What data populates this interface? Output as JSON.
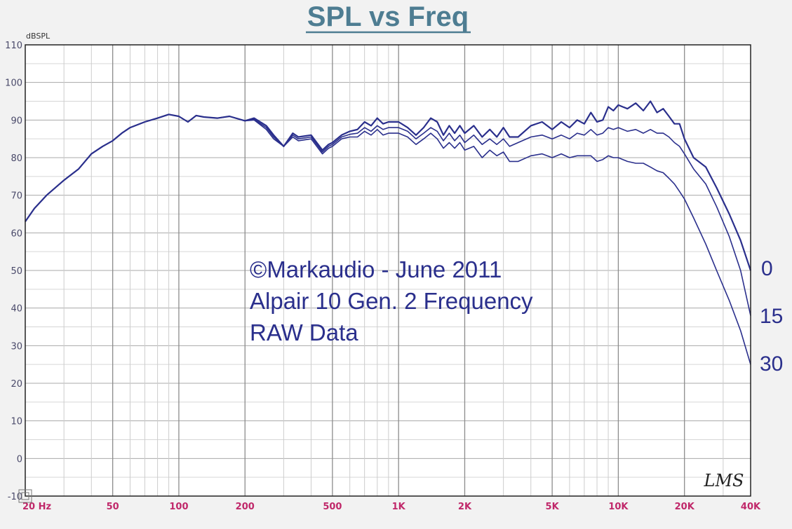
{
  "chart_data": {
    "type": "line",
    "title": "SPL vs Freq",
    "ylabel": "dBSPL",
    "xlabel": "",
    "x_scale": "log",
    "xlim": [
      20,
      40000
    ],
    "ylim": [
      -10,
      110
    ],
    "grid": true,
    "y_ticks": [
      "-10",
      "0",
      "10",
      "20",
      "30",
      "40",
      "50",
      "60",
      "70",
      "80",
      "90",
      "100",
      "110"
    ],
    "x_ticks": [
      {
        "label": "20 Hz",
        "value": 20
      },
      {
        "label": "50",
        "value": 50
      },
      {
        "label": "100",
        "value": 100
      },
      {
        "label": "200",
        "value": 200
      },
      {
        "label": "500",
        "value": 500
      },
      {
        "label": "1K",
        "value": 1000
      },
      {
        "label": "2K",
        "value": 2000
      },
      {
        "label": "5K",
        "value": 5000
      },
      {
        "label": "10K",
        "value": 10000
      },
      {
        "label": "20K",
        "value": 20000
      },
      {
        "label": "40K",
        "value": 40000
      }
    ],
    "annotations": [
      "©Markaudio - June 2011",
      "Alpair 10 Gen. 2 Frequency",
      "RAW Data"
    ],
    "signature": "LMS",
    "line_color": "#2a2f8c",
    "title_color": "#4e7d92",
    "x_tick_color": "#c0286a",
    "series": [
      {
        "name": "0",
        "x": [
          20,
          22,
          25,
          30,
          35,
          40,
          45,
          50,
          55,
          60,
          70,
          80,
          90,
          100,
          110,
          120,
          130,
          150,
          170,
          200,
          220,
          250,
          270,
          300,
          330,
          350,
          400,
          450,
          480,
          500,
          550,
          600,
          650,
          700,
          750,
          800,
          850,
          900,
          1000,
          1100,
          1200,
          1300,
          1400,
          1500,
          1600,
          1700,
          1800,
          1900,
          2000,
          2200,
          2400,
          2600,
          2800,
          3000,
          3200,
          3500,
          4000,
          4500,
          5000,
          5500,
          6000,
          6500,
          7000,
          7500,
          8000,
          8500,
          9000,
          9500,
          10000,
          11000,
          12000,
          13000,
          14000,
          15000,
          16000,
          17000,
          18000,
          19000,
          20000,
          22000,
          25000,
          28000,
          32000,
          36000,
          40000
        ],
        "y": [
          63,
          66.5,
          70,
          74,
          77,
          81,
          83,
          84.5,
          86.5,
          88,
          89.5,
          90.5,
          91.5,
          91,
          89.5,
          91.2,
          90.8,
          90.5,
          91,
          89.8,
          90.5,
          88.5,
          86,
          83,
          86.5,
          85.5,
          86,
          82,
          83.5,
          84,
          86,
          87,
          87.5,
          89.5,
          88.5,
          90.5,
          89,
          89.5,
          89.5,
          88,
          86,
          88,
          90.5,
          89.5,
          86,
          88.5,
          86.5,
          88.5,
          86.5,
          88.5,
          85.5,
          87.5,
          85.5,
          88,
          85.5,
          85.5,
          88.5,
          89.5,
          87.5,
          89.5,
          88,
          90,
          89,
          92,
          89.5,
          90,
          93.5,
          92.5,
          94,
          93,
          94.5,
          92.5,
          95,
          92,
          93,
          91,
          89,
          89,
          85,
          80,
          77.5,
          72,
          65,
          58,
          50
        ]
      },
      {
        "name": "15",
        "x": [
          20,
          22,
          25,
          30,
          35,
          40,
          45,
          50,
          55,
          60,
          70,
          80,
          90,
          100,
          110,
          120,
          130,
          150,
          170,
          200,
          220,
          250,
          270,
          300,
          330,
          350,
          400,
          450,
          480,
          500,
          550,
          600,
          650,
          700,
          750,
          800,
          850,
          900,
          1000,
          1100,
          1200,
          1300,
          1400,
          1500,
          1600,
          1700,
          1800,
          1900,
          2000,
          2200,
          2400,
          2600,
          2800,
          3000,
          3200,
          3500,
          4000,
          4500,
          5000,
          5500,
          6000,
          6500,
          7000,
          7500,
          8000,
          8500,
          9000,
          9500,
          10000,
          11000,
          12000,
          13000,
          14000,
          15000,
          16000,
          17000,
          18000,
          19000,
          20000,
          22000,
          25000,
          28000,
          32000,
          36000,
          40000
        ],
        "y": [
          63,
          66.5,
          70,
          74,
          77,
          81,
          83,
          84.5,
          86.5,
          88,
          89.5,
          90.5,
          91.5,
          91,
          89.5,
          91.2,
          90.8,
          90.5,
          91,
          89.8,
          90.2,
          88,
          85.5,
          83,
          86,
          85,
          85.5,
          81.5,
          83,
          83.5,
          85.5,
          86.2,
          86.5,
          88,
          87,
          88.5,
          87.5,
          88,
          88,
          87,
          85,
          86.5,
          88,
          87,
          84.5,
          86.5,
          84.5,
          86,
          84,
          86,
          83.5,
          85,
          83.5,
          85,
          83,
          84,
          85.5,
          86,
          85,
          86,
          85,
          86.5,
          86,
          87.5,
          86,
          86.5,
          88,
          87.5,
          88,
          87,
          87.5,
          86.5,
          87.5,
          86.5,
          86.5,
          85.5,
          84,
          83,
          81,
          77,
          73,
          67,
          59,
          50,
          38
        ]
      },
      {
        "name": "30",
        "x": [
          20,
          22,
          25,
          30,
          35,
          40,
          45,
          50,
          55,
          60,
          70,
          80,
          90,
          100,
          110,
          120,
          130,
          150,
          170,
          200,
          220,
          250,
          270,
          300,
          330,
          350,
          400,
          450,
          480,
          500,
          550,
          600,
          650,
          700,
          750,
          800,
          850,
          900,
          1000,
          1100,
          1200,
          1300,
          1400,
          1500,
          1600,
          1700,
          1800,
          1900,
          2000,
          2200,
          2400,
          2600,
          2800,
          3000,
          3200,
          3500,
          4000,
          4500,
          5000,
          5500,
          6000,
          6500,
          7000,
          7500,
          8000,
          8500,
          9000,
          9500,
          10000,
          11000,
          12000,
          13000,
          14000,
          15000,
          16000,
          17000,
          18000,
          19000,
          20000,
          22000,
          25000,
          28000,
          32000,
          36000,
          40000
        ],
        "y": [
          63,
          66.5,
          70,
          74,
          77,
          81,
          83,
          84.5,
          86.5,
          88,
          89.5,
          90.5,
          91.5,
          91,
          89.5,
          91.2,
          90.8,
          90.5,
          91,
          89.8,
          90,
          87.5,
          85,
          83,
          85.5,
          84.5,
          85,
          81,
          82.5,
          83,
          85,
          85.5,
          85.5,
          87,
          86,
          87.5,
          86,
          86.5,
          86.5,
          85.5,
          83.5,
          85,
          86.5,
          85,
          82.5,
          84,
          82.5,
          84,
          82,
          83,
          80,
          82,
          80.5,
          81.5,
          79,
          79,
          80.5,
          81,
          80,
          81,
          80,
          80.5,
          80.5,
          80.5,
          79,
          79.5,
          80.5,
          80,
          80,
          79,
          78.5,
          78.5,
          77.5,
          76.5,
          76,
          74.5,
          73,
          71,
          69,
          64,
          57,
          50,
          42,
          34,
          25
        ]
      }
    ]
  }
}
